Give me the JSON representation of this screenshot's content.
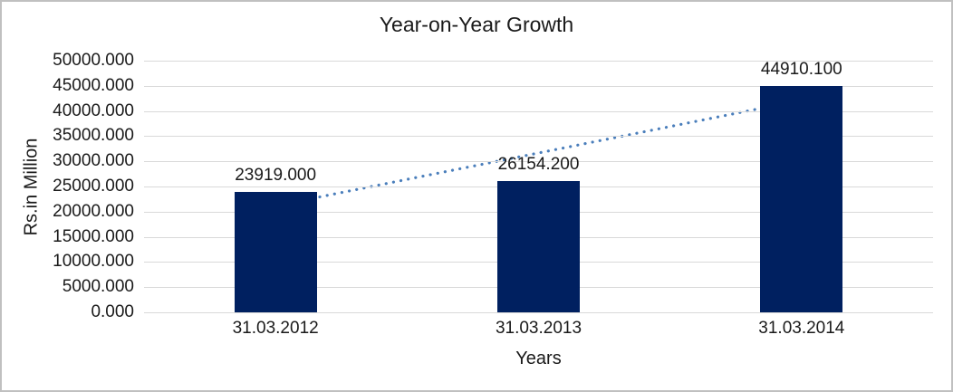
{
  "chart_data": {
    "type": "bar",
    "title": "Year-on-Year Growth",
    "xlabel": "Years",
    "ylabel": "Rs.in Million",
    "categories": [
      "31.03.2012",
      "31.03.2013",
      "31.03.2014"
    ],
    "values": [
      23919.0,
      26154.2,
      44910.1
    ],
    "data_labels": [
      "23919.000",
      "26154.200",
      "44910.100"
    ],
    "ylim": [
      0,
      50000
    ],
    "y_tick_step": 5000,
    "y_tick_labels": [
      "0.000",
      "5000.000",
      "10000.000",
      "15000.000",
      "20000.000",
      "25000.000",
      "30000.000",
      "35000.000",
      "40000.000",
      "45000.000",
      "50000.000"
    ],
    "grid": true,
    "legend": "none",
    "trendline": {
      "type": "linear",
      "style": "dotted"
    },
    "colors": {
      "bar": "#002060",
      "trendline": "#4a7ebb",
      "gridline": "#d9d9d9",
      "text": "#1a1a1a",
      "border": "#c0c0c0",
      "background": "#ffffff"
    }
  }
}
